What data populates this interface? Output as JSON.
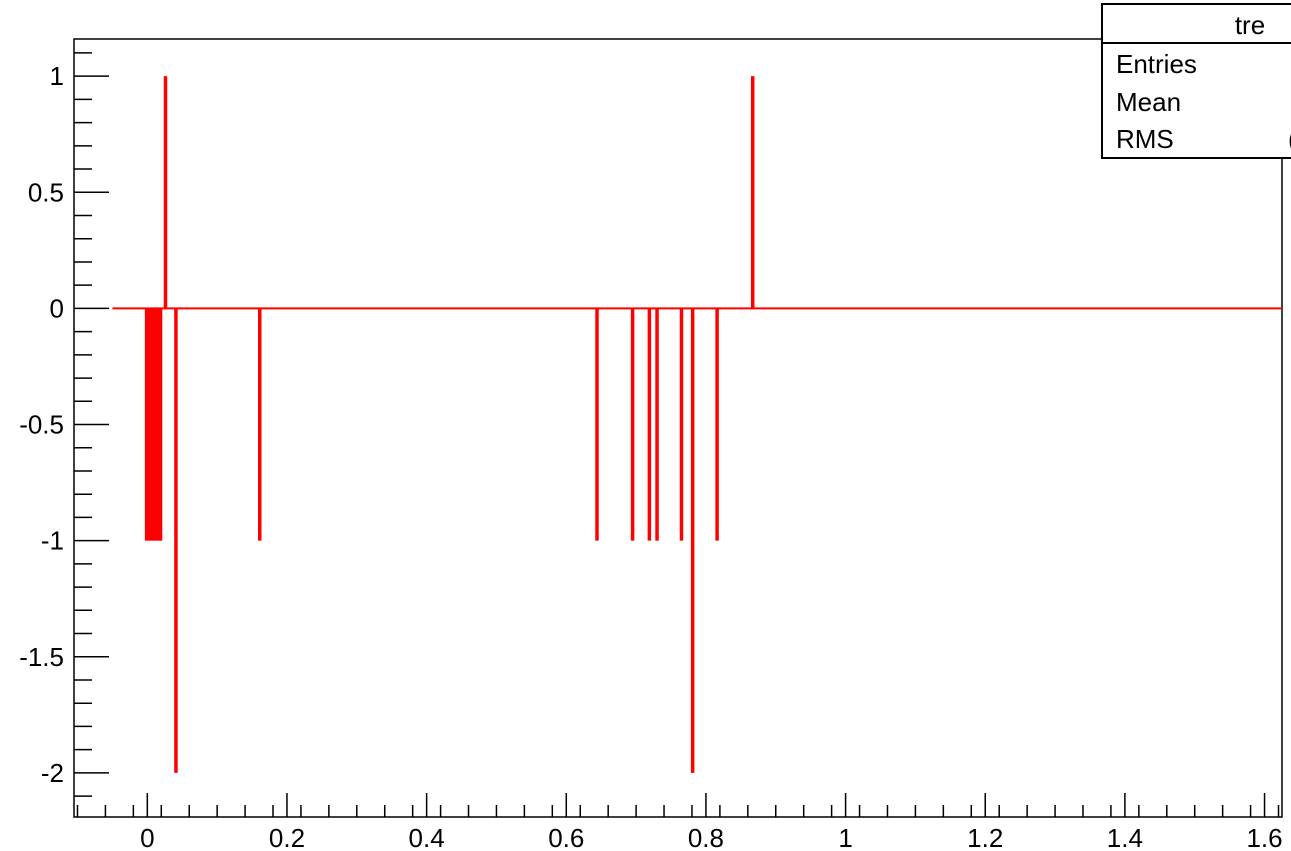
{
  "chart_data": {
    "type": "bar",
    "title": "",
    "xlabel": "",
    "ylabel": "",
    "xlim": [
      -0.105,
      1.625
    ],
    "ylim": [
      -2.19,
      1.16
    ],
    "x_ticks": [
      "0",
      "0.2",
      "0.4",
      "0.6",
      "0.8",
      "1",
      "1.2",
      "1.4",
      "1.6"
    ],
    "x_tick_values": [
      0,
      0.2,
      0.4,
      0.6,
      0.8,
      1,
      1.2,
      1.4,
      1.6
    ],
    "y_ticks": [
      "-2",
      "-1.5",
      "-1",
      "-0.5",
      "0",
      "0.5",
      "1"
    ],
    "y_tick_values": [
      -2,
      -1.5,
      -1,
      -0.5,
      0,
      0.5,
      1
    ],
    "bar_color": "#ff0000",
    "baseline": 0,
    "bars": [
      {
        "x": -0.001,
        "y": -1
      },
      {
        "x": 0.003,
        "y": -1
      },
      {
        "x": 0.007,
        "y": -1
      },
      {
        "x": 0.011,
        "y": -1
      },
      {
        "x": 0.015,
        "y": -1
      },
      {
        "x": 0.019,
        "y": -1
      },
      {
        "x": 0.026,
        "y": 1
      },
      {
        "x": 0.041,
        "y": -2
      },
      {
        "x": 0.161,
        "y": -1
      },
      {
        "x": 0.644,
        "y": -1
      },
      {
        "x": 0.695,
        "y": -1
      },
      {
        "x": 0.719,
        "y": -1
      },
      {
        "x": 0.73,
        "y": -1
      },
      {
        "x": 0.765,
        "y": -1
      },
      {
        "x": 0.781,
        "y": -2
      },
      {
        "x": 0.816,
        "y": -1
      },
      {
        "x": 0.867,
        "y": 1
      }
    ],
    "legend": "top-right",
    "stats_box": {
      "title": "tre",
      "rows": [
        {
          "label": "Entries",
          "value": ""
        },
        {
          "label": "Mean",
          "value": ""
        },
        {
          "label": "RMS",
          "value": "("
        }
      ]
    }
  }
}
